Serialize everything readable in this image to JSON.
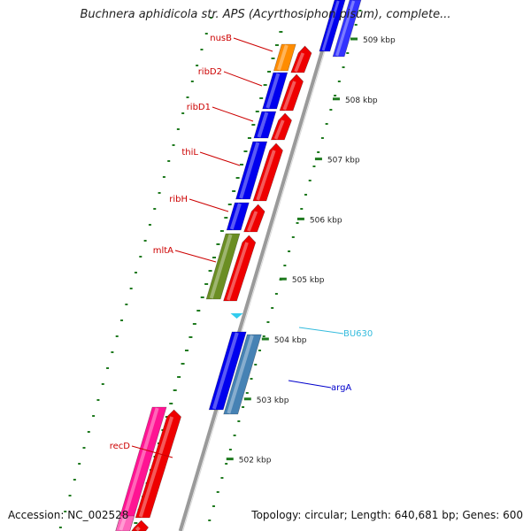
{
  "title": "Buchnera aphidicola str. APS (Acyrthosiphon pisum), complete...",
  "footer": {
    "accession": "Accession: NC_002528",
    "topology": "Topology: circular; Length: 640,681 bp; Genes: 600"
  },
  "colors": {
    "background": "#ffffff",
    "backbone": "#9a9a9a",
    "tick": "#1f7a1f",
    "label_red": "#cc0000",
    "label_cyan": "#33bbdd",
    "label_blue": "#0000cc",
    "gene_red": "#ee0000",
    "gene_blue": "#0000ee",
    "gene_orange": "#ff8c00",
    "gene_olive": "#6b8e23",
    "gene_steel": "#4682b4",
    "gene_pink": "#ff1493",
    "gene_cyan": "#33ccee"
  },
  "scale_labels": [
    {
      "kbp": 509,
      "label": "509 kbp"
    },
    {
      "kbp": 508,
      "label": "508 kbp"
    },
    {
      "kbp": 507,
      "label": "507 kbp"
    },
    {
      "kbp": 506,
      "label": "506 kbp"
    },
    {
      "kbp": 505,
      "label": "505 kbp"
    },
    {
      "kbp": 504,
      "label": "504 kbp"
    },
    {
      "kbp": 503,
      "label": "503 kbp"
    },
    {
      "kbp": 502,
      "label": "502 kbp"
    }
  ],
  "genes": [
    {
      "name": "nusB",
      "color_key": "gene_orange",
      "label_color": "label_red"
    },
    {
      "name": "ribD2",
      "color_key": "gene_blue",
      "label_color": "label_red"
    },
    {
      "name": "ribD1",
      "color_key": "gene_blue",
      "label_color": "label_red"
    },
    {
      "name": "thiL",
      "color_key": "gene_blue",
      "label_color": "label_red"
    },
    {
      "name": "ribH",
      "color_key": "gene_blue",
      "label_color": "label_red"
    },
    {
      "name": "mltA",
      "color_key": "gene_olive",
      "label_color": "label_red"
    },
    {
      "name": "BU630",
      "color_key": "gene_cyan",
      "label_color": "label_cyan"
    },
    {
      "name": "argA",
      "color_key": "gene_steel",
      "label_color": "label_blue"
    },
    {
      "name": "recD",
      "color_key": "gene_pink",
      "label_color": "label_red"
    }
  ]
}
